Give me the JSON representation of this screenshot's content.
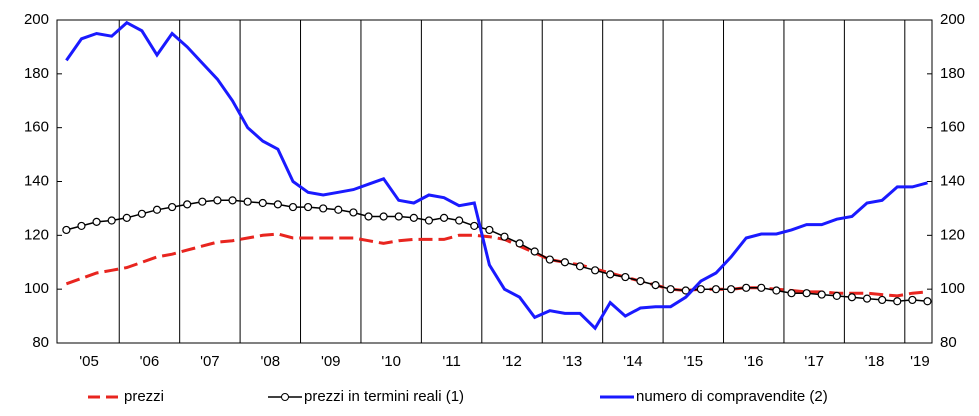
{
  "chart_data": {
    "type": "line",
    "x": [
      2005.125,
      2005.375,
      2005.625,
      2005.875,
      2006.125,
      2006.375,
      2006.625,
      2006.875,
      2007.125,
      2007.375,
      2007.625,
      2007.875,
      2008.125,
      2008.375,
      2008.625,
      2008.875,
      2009.125,
      2009.375,
      2009.625,
      2009.875,
      2010.125,
      2010.375,
      2010.625,
      2010.875,
      2011.125,
      2011.375,
      2011.625,
      2011.875,
      2012.125,
      2012.375,
      2012.625,
      2012.875,
      2013.125,
      2013.375,
      2013.625,
      2013.875,
      2014.125,
      2014.375,
      2014.625,
      2014.875,
      2015.125,
      2015.375,
      2015.625,
      2015.875,
      2016.125,
      2016.375,
      2016.625,
      2016.875,
      2017.125,
      2017.375,
      2017.625,
      2017.875,
      2018.125,
      2018.375,
      2018.625,
      2018.875,
      2019.125,
      2019.375
    ],
    "series": [
      {
        "name": "prezzi",
        "color": "#e8251f",
        "dash": true,
        "values": [
          102,
          104,
          106,
          107,
          108,
          110,
          112,
          113,
          114.5,
          116,
          117.5,
          118,
          119,
          120,
          120.5,
          119,
          119,
          119,
          119,
          119,
          118,
          117,
          118,
          118.5,
          118.5,
          118.5,
          120,
          120,
          119.5,
          118.5,
          116,
          113.5,
          111,
          110,
          109,
          107.5,
          106,
          104.5,
          103,
          101.5,
          100,
          99.5,
          100,
          100,
          100,
          100.5,
          100.5,
          100,
          99.5,
          99,
          99,
          98.5,
          98.5,
          98.5,
          98,
          97.5,
          98.5,
          99
        ]
      },
      {
        "name": "prezzi in termini reali (1)",
        "color": "#000000",
        "markers": true,
        "values": [
          122,
          123.5,
          125,
          125.5,
          126.5,
          128,
          129.5,
          130.5,
          131.5,
          132.5,
          133,
          133,
          132.5,
          132,
          131.5,
          130.5,
          130.5,
          130,
          129.5,
          128.5,
          127,
          127,
          127,
          126.5,
          125.5,
          126.5,
          125.5,
          123.5,
          122,
          119.5,
          117,
          114,
          111,
          110,
          108.5,
          107,
          105.5,
          104.5,
          103,
          101.5,
          100,
          99.5,
          100,
          100,
          100,
          100.5,
          100.5,
          99.5,
          98.5,
          98.5,
          98,
          97.5,
          97,
          96.5,
          96,
          95.5,
          96,
          95.5
        ]
      },
      {
        "name": "numero di compravendite (2)",
        "color": "#1a1aff",
        "values": [
          185,
          193,
          195,
          194,
          199,
          196,
          187,
          195,
          190,
          184,
          178,
          170,
          160,
          155,
          152,
          140,
          136,
          135,
          136,
          137,
          139,
          141,
          133,
          132,
          135,
          134,
          131,
          132,
          109,
          100,
          97,
          89.5,
          92,
          91,
          91,
          85.5,
          95,
          90,
          93,
          93.5,
          93.5,
          97,
          103,
          106,
          112,
          119,
          120.5,
          120.5,
          122,
          124,
          124,
          126,
          127,
          132,
          133,
          138,
          138,
          139.5
        ]
      }
    ],
    "xlim": [
      2004.97,
      2019.45
    ],
    "xticks": [
      {
        "value": 2005.5,
        "label": "'05"
      },
      {
        "value": 2006.5,
        "label": "'06"
      },
      {
        "value": 2007.5,
        "label": "'07"
      },
      {
        "value": 2008.5,
        "label": "'08"
      },
      {
        "value": 2009.5,
        "label": "'09"
      },
      {
        "value": 2010.5,
        "label": "'10"
      },
      {
        "value": 2011.5,
        "label": "'11"
      },
      {
        "value": 2012.5,
        "label": "'12"
      },
      {
        "value": 2013.5,
        "label": "'13"
      },
      {
        "value": 2014.5,
        "label": "'14"
      },
      {
        "value": 2015.5,
        "label": "'15"
      },
      {
        "value": 2016.5,
        "label": "'16"
      },
      {
        "value": 2017.5,
        "label": "'17"
      },
      {
        "value": 2018.5,
        "label": "'18"
      },
      {
        "value": 2019.25,
        "label": "'19"
      }
    ],
    "xgrid": [
      2006,
      2007,
      2008,
      2009,
      2010,
      2011,
      2012,
      2013,
      2014,
      2015,
      2016,
      2017,
      2018,
      2019
    ],
    "ylim": [
      80,
      200
    ],
    "yticks": [
      80,
      100,
      120,
      140,
      160,
      180,
      200
    ],
    "y2lim": [
      80,
      200
    ],
    "y2ticks": [
      80,
      100,
      120,
      140,
      160,
      180,
      200
    ],
    "legend": "bottom"
  }
}
